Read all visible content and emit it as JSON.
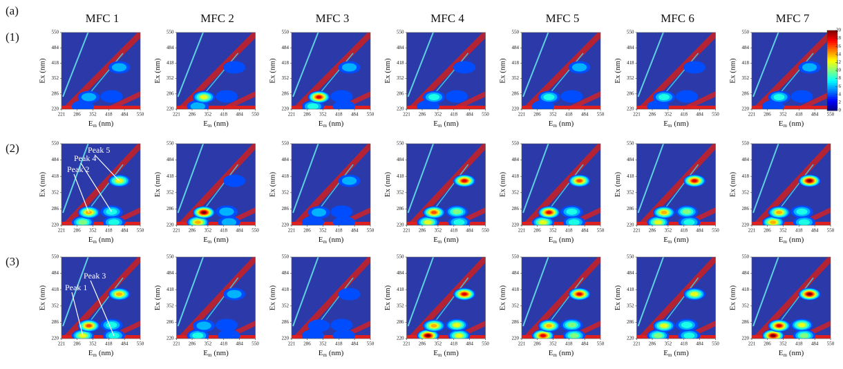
{
  "figure_label": "(a)",
  "chart_data": {
    "type": "contour",
    "columns": [
      "MFC 1",
      "MFC 2",
      "MFC 3",
      "MFC 4",
      "MFC 5",
      "MFC 6",
      "MFC 7"
    ],
    "rows": [
      "(1)",
      "(2)",
      "(3)"
    ],
    "xlabel": {
      "symbol": "E",
      "subscript": "m",
      "unit": "(nm)"
    },
    "ylabel": "Ex (nm)",
    "xlim": [
      221,
      550
    ],
    "ylim": [
      220,
      550
    ],
    "xticks": [
      221,
      286,
      352,
      418,
      484,
      550
    ],
    "yticks": [
      220,
      286,
      352,
      418,
      484,
      550
    ],
    "colorbar": {
      "lim": [
        0,
        20
      ],
      "ticks": [
        0,
        2,
        4,
        6,
        8,
        10,
        12,
        14,
        16,
        18,
        20
      ]
    },
    "peaks": [
      {
        "name": "Peak 1",
        "em": 310,
        "ex": 232
      },
      {
        "name": "Peak 2",
        "em": 335,
        "ex": 272
      },
      {
        "name": "Peak 3",
        "em": 440,
        "ex": 232
      },
      {
        "name": "Peak 4",
        "em": 430,
        "ex": 275
      },
      {
        "name": "Peak 5",
        "em": 462,
        "ex": 400
      }
    ],
    "intensity": [
      [
        [
          4,
          6,
          3,
          4,
          7
        ],
        [
          6,
          12,
          3,
          4,
          5
        ],
        [
          8,
          18,
          4,
          5,
          7
        ],
        [
          4,
          8,
          3,
          4,
          5
        ],
        [
          4,
          8,
          3,
          4,
          6
        ],
        [
          4,
          8,
          3,
          4,
          5
        ],
        [
          4,
          9,
          3,
          4,
          6
        ]
      ],
      [
        [
          10,
          14,
          8,
          9,
          12
        ],
        [
          14,
          20,
          6,
          7,
          5
        ],
        [
          5,
          7,
          4,
          5,
          6
        ],
        [
          12,
          16,
          8,
          10,
          18
        ],
        [
          12,
          18,
          8,
          9,
          16
        ],
        [
          12,
          14,
          8,
          10,
          18
        ],
        [
          14,
          15,
          8,
          9,
          20
        ]
      ],
      [
        [
          12,
          16,
          8,
          9,
          14
        ],
        [
          8,
          6,
          5,
          4,
          6
        ],
        [
          5,
          5,
          4,
          4,
          4
        ],
        [
          20,
          14,
          12,
          12,
          18
        ],
        [
          18,
          14,
          10,
          10,
          18
        ],
        [
          10,
          12,
          8,
          9,
          12
        ],
        [
          20,
          18,
          10,
          12,
          20
        ]
      ]
    ]
  }
}
